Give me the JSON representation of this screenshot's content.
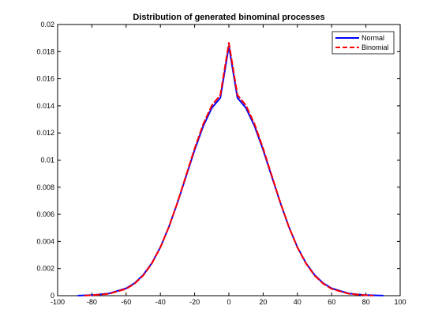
{
  "chart_data": {
    "type": "line",
    "title": "Distribution of generated binominal processes",
    "xlabel": "",
    "ylabel": "",
    "xlim": [
      -100,
      100
    ],
    "ylim": [
      0,
      0.02
    ],
    "xticks": [
      -100,
      -80,
      -60,
      -40,
      -20,
      0,
      20,
      40,
      60,
      80,
      100
    ],
    "xtick_labels": [
      "-100",
      "-80",
      "-60",
      "-40",
      "-20",
      "0",
      "20",
      "40",
      "60",
      "80",
      "100"
    ],
    "yticks": [
      0,
      0.002,
      0.004,
      0.006,
      0.008,
      0.01,
      0.012,
      0.014,
      0.016,
      0.018,
      0.02
    ],
    "ytick_labels": [
      "0",
      "0.002",
      "0.004",
      "0.006",
      "0.008",
      "0.01",
      "0.012",
      "0.014",
      "0.016",
      "0.018",
      "0.02"
    ],
    "grid": false,
    "legend_position": "top-right",
    "series": [
      {
        "name": "Normal",
        "color": "#0000ff",
        "style": "solid",
        "x": [
          -88,
          -80,
          -70,
          -60,
          -55,
          -50,
          -45,
          -40,
          -35,
          -30,
          -25,
          -20,
          -15,
          -10,
          -5,
          0,
          5,
          10,
          15,
          20,
          25,
          30,
          35,
          40,
          45,
          50,
          55,
          60,
          70,
          80,
          90
        ],
        "y": [
          1e-05,
          4e-05,
          0.00016,
          0.00054,
          0.00093,
          0.00153,
          0.0024,
          0.00358,
          0.00508,
          0.00686,
          0.0088,
          0.01075,
          0.0125,
          0.01384,
          0.01459,
          0.0184,
          0.01459,
          0.01384,
          0.0125,
          0.01075,
          0.0088,
          0.00686,
          0.00508,
          0.00358,
          0.0024,
          0.00153,
          0.00093,
          0.00054,
          0.00016,
          4e-05,
          1e-05
        ]
      },
      {
        "name": "Binomial",
        "color": "#ff0000",
        "style": "dashed",
        "x": [
          -84,
          -80,
          -70,
          -60,
          -55,
          -50,
          -45,
          -40,
          -35,
          -30,
          -25,
          -20,
          -15,
          -10,
          -5,
          0,
          5,
          10,
          15,
          20,
          25,
          30,
          35,
          40,
          45,
          50,
          55,
          60,
          70,
          80,
          84
        ],
        "y": [
          1e-05,
          3e-05,
          0.00014,
          0.0005,
          0.00089,
          0.00149,
          0.00237,
          0.00356,
          0.00508,
          0.00689,
          0.00887,
          0.01086,
          0.01265,
          0.01403,
          0.0148,
          0.01865,
          0.0148,
          0.01403,
          0.01265,
          0.01086,
          0.00887,
          0.00689,
          0.00508,
          0.00356,
          0.00237,
          0.00149,
          0.00089,
          0.0005,
          0.00014,
          3e-05,
          1e-05
        ]
      }
    ]
  }
}
